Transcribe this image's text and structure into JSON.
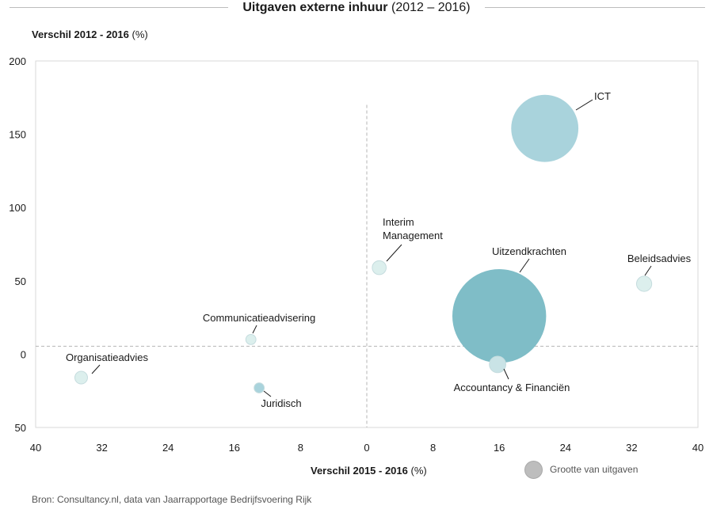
{
  "chart_data": {
    "type": "scatter",
    "title_bold": "Uitgaven externe inhuur",
    "title_rest": "(2012 – 2016)",
    "ylabel_bold": "Verschil 2012 - 2016",
    "ylabel_rest": "(%)",
    "xlabel_bold": "Verschil 2015 - 2016",
    "xlabel_rest": "(%)",
    "xlim": [
      -40,
      40
    ],
    "ylim": [
      -50,
      200
    ],
    "x_ticks": [
      -40,
      -32,
      -24,
      -16,
      -8,
      0,
      8,
      16,
      24,
      32,
      40
    ],
    "x_tick_labels": [
      "40",
      "32",
      "24",
      "16",
      "8",
      "0",
      "8",
      "16",
      "24",
      "32",
      "40"
    ],
    "y_ticks": [
      200,
      150,
      100,
      50,
      0,
      -50
    ],
    "y_tick_labels": [
      "200",
      "150",
      "100",
      "50",
      "0",
      "50"
    ],
    "size_legend": "Grootte van uitgaven",
    "points": [
      {
        "label": "ICT",
        "x": 21.5,
        "y": 154,
        "size": 0.53,
        "color": "#a9d3dc"
      },
      {
        "label": "Uitzendkrachten",
        "x": 16,
        "y": 26,
        "size": 0.74,
        "color": "#7fbdc7"
      },
      {
        "label": "Interim Management",
        "x": 1.5,
        "y": 59,
        "size": 0.11,
        "color": "#dcefed"
      },
      {
        "label": "Beleidsadvies",
        "x": 33.5,
        "y": 48,
        "size": 0.12,
        "color": "#dcefed"
      },
      {
        "label": "Accountancy & Financiën",
        "x": 15.8,
        "y": -7,
        "size": 0.13,
        "color": "#c9e3e6"
      },
      {
        "label": "Communicatieadvisering",
        "x": -14,
        "y": 10,
        "size": 0.08,
        "color": "#dcefed"
      },
      {
        "label": "Organisatieadvies",
        "x": -34.5,
        "y": -16,
        "size": 0.1,
        "color": "#dcefed"
      },
      {
        "label": "Juridisch",
        "x": -13,
        "y": -23,
        "size": 0.08,
        "color": "#a9d3dc"
      }
    ],
    "source": "Bron: Consultancy.nl, data van Jaarrapportage Bedrijfsvoering Rijk"
  }
}
